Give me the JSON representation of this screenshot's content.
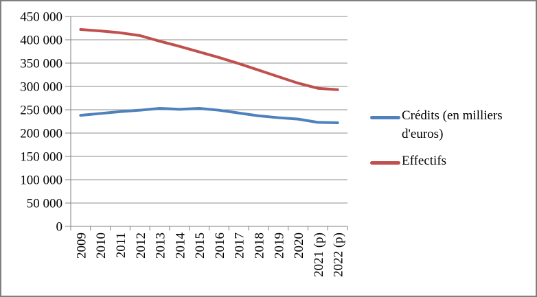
{
  "chart_data": {
    "type": "line",
    "title": "",
    "xlabel": "",
    "ylabel": "",
    "categories": [
      "2009",
      "2010",
      "2011",
      "2012",
      "2013",
      "2014",
      "2015",
      "2016",
      "2017",
      "2018",
      "2019",
      "2020",
      "2021 (p)",
      "2022 (p)"
    ],
    "series": [
      {
        "name": "Crédits (en milliers d'euros)",
        "color": "#4F81BD",
        "values": [
          238000,
          242000,
          246000,
          249000,
          253000,
          251000,
          253000,
          249000,
          243000,
          237000,
          233000,
          230000,
          223000,
          222000
        ]
      },
      {
        "name": "Effectifs",
        "color": "#C0504D",
        "values": [
          422000,
          419000,
          415000,
          409000,
          397000,
          386000,
          374000,
          362000,
          349000,
          335000,
          321000,
          307000,
          296000,
          293000
        ]
      }
    ],
    "ylim": [
      0,
      450000
    ],
    "ytick_step": 50000,
    "ytick_labels": [
      "0",
      "50 000",
      "100 000",
      "150 000",
      "200 000",
      "250 000",
      "300 000",
      "350 000",
      "400 000",
      "450 000"
    ],
    "grid": true,
    "legend_position": "right",
    "x_label_rotation": -90,
    "colors": {
      "gridline": "#8C8C8C",
      "axis": "#808080",
      "tick": "#808080",
      "text": "#000000",
      "background": "#FFFFFF",
      "frame_border": "#7F7F7F"
    }
  }
}
